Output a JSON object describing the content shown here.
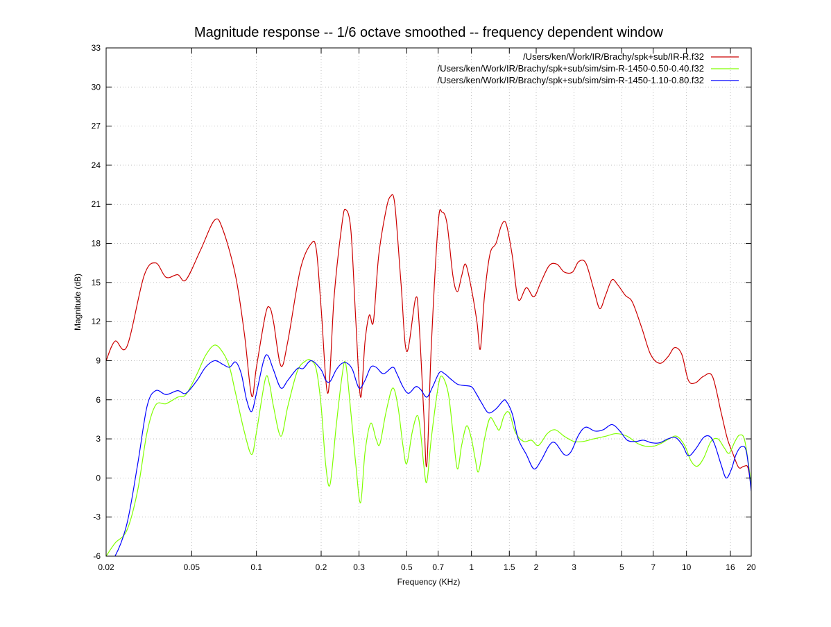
{
  "chart_data": {
    "type": "line",
    "title": "Magnitude response -- 1/6 octave smoothed -- frequency dependent window",
    "xlabel": "Frequency (KHz)",
    "ylabel": "Magnitude (dB)",
    "xscale": "log",
    "xlim": [
      0.02,
      20
    ],
    "ylim": [
      -6,
      33
    ],
    "grid": true,
    "legend_position": "top-right",
    "x_ticks": [
      0.02,
      0.05,
      0.1,
      0.2,
      0.3,
      0.5,
      0.7,
      1,
      1.5,
      2,
      3,
      5,
      7,
      10,
      16,
      20
    ],
    "x_tick_labels": [
      "0.02",
      "0.05",
      "0.1",
      "0.2",
      "0.3",
      "0.5",
      "0.7",
      "1",
      "1.5",
      "2",
      "3",
      "5",
      "7",
      "10",
      "16",
      "20"
    ],
    "y_ticks": [
      -6,
      -3,
      0,
      3,
      6,
      9,
      12,
      15,
      18,
      21,
      24,
      27,
      30,
      33
    ],
    "y_tick_labels": [
      "-6",
      "-3",
      "0",
      "3",
      "6",
      "9",
      "12",
      "15",
      "18",
      "21",
      "24",
      "27",
      "30",
      "33"
    ],
    "series": [
      {
        "name": "/Users/ken/Work/IR/Brachy/spk+sub/IR-R.f32",
        "color": "#cc0000",
        "points": [
          [
            0.02,
            9.0
          ],
          [
            0.022,
            10.5
          ],
          [
            0.025,
            10.1
          ],
          [
            0.03,
            15.5
          ],
          [
            0.034,
            16.5
          ],
          [
            0.038,
            15.4
          ],
          [
            0.043,
            15.6
          ],
          [
            0.047,
            15.2
          ],
          [
            0.055,
            17.5
          ],
          [
            0.064,
            19.8
          ],
          [
            0.07,
            19.0
          ],
          [
            0.08,
            15.5
          ],
          [
            0.088,
            11.0
          ],
          [
            0.095,
            6.3
          ],
          [
            0.1,
            8.5
          ],
          [
            0.11,
            12.5
          ],
          [
            0.115,
            13.1
          ],
          [
            0.12,
            12.0
          ],
          [
            0.13,
            8.6
          ],
          [
            0.14,
            10.5
          ],
          [
            0.16,
            16.0
          ],
          [
            0.18,
            18.0
          ],
          [
            0.19,
            17.5
          ],
          [
            0.2,
            13.0
          ],
          [
            0.215,
            6.5
          ],
          [
            0.23,
            14.0
          ],
          [
            0.25,
            19.5
          ],
          [
            0.26,
            20.6
          ],
          [
            0.275,
            19.0
          ],
          [
            0.29,
            12.0
          ],
          [
            0.305,
            6.2
          ],
          [
            0.32,
            10.5
          ],
          [
            0.335,
            12.5
          ],
          [
            0.35,
            12.0
          ],
          [
            0.37,
            17.0
          ],
          [
            0.4,
            20.5
          ],
          [
            0.42,
            21.6
          ],
          [
            0.44,
            21.0
          ],
          [
            0.47,
            15.0
          ],
          [
            0.5,
            9.7
          ],
          [
            0.55,
            13.8
          ],
          [
            0.57,
            12.0
          ],
          [
            0.6,
            5.0
          ],
          [
            0.62,
            1.0
          ],
          [
            0.65,
            10.0
          ],
          [
            0.7,
            19.5
          ],
          [
            0.73,
            20.4
          ],
          [
            0.77,
            19.5
          ],
          [
            0.82,
            15.5
          ],
          [
            0.86,
            14.3
          ],
          [
            0.9,
            15.5
          ],
          [
            0.94,
            16.4
          ],
          [
            1.0,
            14.5
          ],
          [
            1.06,
            12.0
          ],
          [
            1.1,
            9.9
          ],
          [
            1.15,
            14.0
          ],
          [
            1.22,
            17.2
          ],
          [
            1.3,
            18.0
          ],
          [
            1.38,
            19.4
          ],
          [
            1.45,
            19.5
          ],
          [
            1.55,
            17.0
          ],
          [
            1.65,
            13.7
          ],
          [
            1.8,
            14.6
          ],
          [
            1.95,
            13.9
          ],
          [
            2.1,
            15.0
          ],
          [
            2.3,
            16.3
          ],
          [
            2.5,
            16.4
          ],
          [
            2.7,
            15.8
          ],
          [
            2.95,
            15.8
          ],
          [
            3.15,
            16.6
          ],
          [
            3.4,
            16.5
          ],
          [
            3.7,
            14.5
          ],
          [
            3.95,
            13.0
          ],
          [
            4.2,
            14.0
          ],
          [
            4.5,
            15.2
          ],
          [
            4.8,
            14.8
          ],
          [
            5.2,
            14.0
          ],
          [
            5.6,
            13.5
          ],
          [
            6.2,
            11.5
          ],
          [
            6.8,
            9.5
          ],
          [
            7.5,
            8.8
          ],
          [
            8.2,
            9.3
          ],
          [
            8.8,
            10.0
          ],
          [
            9.5,
            9.5
          ],
          [
            10.2,
            7.5
          ],
          [
            11.0,
            7.3
          ],
          [
            12.0,
            7.8
          ],
          [
            13.2,
            7.8
          ],
          [
            14.5,
            5.0
          ],
          [
            15.5,
            3.0
          ],
          [
            16.5,
            1.8
          ],
          [
            17.5,
            0.8
          ],
          [
            18.5,
            0.9
          ],
          [
            19.3,
            0.8
          ],
          [
            20.0,
            -0.7
          ]
        ]
      },
      {
        "name": "/Users/ken/Work/IR/Brachy/spk+sub/sim/sim-R-1450-0.50-0.40.f32",
        "color": "#80ff00",
        "points": [
          [
            0.02,
            -6.0
          ],
          [
            0.022,
            -5.0
          ],
          [
            0.025,
            -4.0
          ],
          [
            0.028,
            -1.0
          ],
          [
            0.031,
            3.5
          ],
          [
            0.034,
            5.6
          ],
          [
            0.038,
            5.7
          ],
          [
            0.043,
            6.2
          ],
          [
            0.047,
            6.4
          ],
          [
            0.053,
            8.0
          ],
          [
            0.058,
            9.4
          ],
          [
            0.064,
            10.2
          ],
          [
            0.07,
            9.6
          ],
          [
            0.075,
            8.5
          ],
          [
            0.08,
            6.5
          ],
          [
            0.088,
            3.5
          ],
          [
            0.095,
            1.8
          ],
          [
            0.1,
            3.5
          ],
          [
            0.11,
            7.6
          ],
          [
            0.115,
            7.2
          ],
          [
            0.12,
            5.5
          ],
          [
            0.13,
            3.2
          ],
          [
            0.14,
            5.5
          ],
          [
            0.155,
            8.2
          ],
          [
            0.17,
            9.0
          ],
          [
            0.18,
            9.0
          ],
          [
            0.19,
            8.3
          ],
          [
            0.2,
            5.5
          ],
          [
            0.21,
            1.0
          ],
          [
            0.22,
            -0.5
          ],
          [
            0.235,
            4.0
          ],
          [
            0.25,
            7.8
          ],
          [
            0.26,
            8.8
          ],
          [
            0.275,
            5.0
          ],
          [
            0.29,
            1.0
          ],
          [
            0.305,
            -1.9
          ],
          [
            0.32,
            2.0
          ],
          [
            0.34,
            4.2
          ],
          [
            0.36,
            3.0
          ],
          [
            0.375,
            2.6
          ],
          [
            0.4,
            5.0
          ],
          [
            0.43,
            6.9
          ],
          [
            0.455,
            5.5
          ],
          [
            0.48,
            2.5
          ],
          [
            0.5,
            1.1
          ],
          [
            0.53,
            3.5
          ],
          [
            0.56,
            4.8
          ],
          [
            0.58,
            3.5
          ],
          [
            0.6,
            1.0
          ],
          [
            0.62,
            -0.3
          ],
          [
            0.65,
            3.0
          ],
          [
            0.7,
            7.0
          ],
          [
            0.73,
            7.8
          ],
          [
            0.78,
            6.5
          ],
          [
            0.82,
            3.5
          ],
          [
            0.86,
            0.7
          ],
          [
            0.9,
            2.5
          ],
          [
            0.95,
            4.0
          ],
          [
            1.0,
            3.0
          ],
          [
            1.04,
            1.5
          ],
          [
            1.08,
            0.5
          ],
          [
            1.15,
            3.0
          ],
          [
            1.22,
            4.6
          ],
          [
            1.3,
            4.0
          ],
          [
            1.35,
            3.7
          ],
          [
            1.42,
            4.8
          ],
          [
            1.5,
            5.0
          ],
          [
            1.6,
            3.5
          ],
          [
            1.75,
            2.8
          ],
          [
            1.9,
            2.9
          ],
          [
            2.05,
            2.5
          ],
          [
            2.25,
            3.4
          ],
          [
            2.45,
            3.7
          ],
          [
            2.7,
            3.2
          ],
          [
            3.0,
            2.8
          ],
          [
            3.3,
            2.8
          ],
          [
            3.7,
            3.0
          ],
          [
            4.2,
            3.2
          ],
          [
            4.7,
            3.4
          ],
          [
            5.3,
            3.2
          ],
          [
            6.0,
            2.6
          ],
          [
            6.8,
            2.4
          ],
          [
            7.5,
            2.6
          ],
          [
            8.3,
            3.0
          ],
          [
            9.0,
            3.2
          ],
          [
            9.8,
            2.5
          ],
          [
            10.5,
            1.3
          ],
          [
            11.2,
            0.9
          ],
          [
            12.0,
            1.5
          ],
          [
            13.0,
            2.8
          ],
          [
            14.0,
            3.0
          ],
          [
            15.0,
            2.3
          ],
          [
            15.8,
            1.9
          ],
          [
            16.8,
            2.8
          ],
          [
            17.7,
            3.3
          ],
          [
            18.7,
            2.8
          ],
          [
            20.0,
            -0.5
          ]
        ]
      },
      {
        "name": "/Users/ken/Work/IR/Brachy/spk+sub/sim/sim-R-1450-1.10-0.80.f32",
        "color": "#0000ff",
        "points": [
          [
            0.02,
            -6.5
          ],
          [
            0.022,
            -6.0
          ],
          [
            0.025,
            -3.5
          ],
          [
            0.028,
            1.0
          ],
          [
            0.031,
            5.5
          ],
          [
            0.034,
            6.7
          ],
          [
            0.038,
            6.4
          ],
          [
            0.043,
            6.7
          ],
          [
            0.047,
            6.5
          ],
          [
            0.053,
            7.5
          ],
          [
            0.058,
            8.5
          ],
          [
            0.064,
            9.0
          ],
          [
            0.07,
            8.7
          ],
          [
            0.075,
            8.5
          ],
          [
            0.08,
            8.9
          ],
          [
            0.085,
            8.0
          ],
          [
            0.09,
            6.0
          ],
          [
            0.095,
            5.1
          ],
          [
            0.1,
            6.5
          ],
          [
            0.108,
            9.0
          ],
          [
            0.113,
            9.4
          ],
          [
            0.12,
            8.3
          ],
          [
            0.13,
            6.9
          ],
          [
            0.14,
            7.5
          ],
          [
            0.155,
            8.4
          ],
          [
            0.165,
            8.4
          ],
          [
            0.18,
            9.0
          ],
          [
            0.2,
            8.3
          ],
          [
            0.21,
            7.5
          ],
          [
            0.22,
            7.4
          ],
          [
            0.235,
            8.3
          ],
          [
            0.25,
            8.8
          ],
          [
            0.265,
            8.8
          ],
          [
            0.28,
            8.3
          ],
          [
            0.3,
            6.9
          ],
          [
            0.32,
            7.5
          ],
          [
            0.34,
            8.5
          ],
          [
            0.36,
            8.5
          ],
          [
            0.39,
            8.0
          ],
          [
            0.43,
            8.5
          ],
          [
            0.45,
            8.0
          ],
          [
            0.48,
            7.0
          ],
          [
            0.51,
            6.5
          ],
          [
            0.55,
            7.0
          ],
          [
            0.58,
            6.8
          ],
          [
            0.62,
            6.2
          ],
          [
            0.66,
            7.0
          ],
          [
            0.71,
            8.1
          ],
          [
            0.75,
            8.0
          ],
          [
            0.8,
            7.6
          ],
          [
            0.86,
            7.2
          ],
          [
            0.92,
            7.1
          ],
          [
            1.0,
            7.0
          ],
          [
            1.05,
            6.5
          ],
          [
            1.12,
            5.7
          ],
          [
            1.2,
            5.0
          ],
          [
            1.3,
            5.3
          ],
          [
            1.4,
            5.9
          ],
          [
            1.45,
            5.9
          ],
          [
            1.55,
            4.9
          ],
          [
            1.65,
            3.0
          ],
          [
            1.8,
            1.8
          ],
          [
            1.95,
            0.7
          ],
          [
            2.1,
            1.3
          ],
          [
            2.3,
            2.5
          ],
          [
            2.45,
            2.7
          ],
          [
            2.7,
            1.8
          ],
          [
            2.9,
            2.0
          ],
          [
            3.15,
            3.3
          ],
          [
            3.4,
            3.9
          ],
          [
            3.75,
            3.6
          ],
          [
            4.1,
            3.7
          ],
          [
            4.5,
            4.1
          ],
          [
            4.9,
            3.6
          ],
          [
            5.3,
            2.9
          ],
          [
            5.8,
            2.8
          ],
          [
            6.3,
            2.9
          ],
          [
            6.9,
            2.7
          ],
          [
            7.5,
            2.7
          ],
          [
            8.2,
            3.0
          ],
          [
            8.9,
            3.1
          ],
          [
            9.6,
            2.5
          ],
          [
            10.2,
            1.7
          ],
          [
            11.0,
            2.2
          ],
          [
            12.0,
            3.1
          ],
          [
            12.8,
            3.2
          ],
          [
            13.5,
            2.6
          ],
          [
            14.5,
            1.0
          ],
          [
            15.3,
            0.0
          ],
          [
            16.2,
            0.7
          ],
          [
            17.0,
            1.8
          ],
          [
            18.0,
            2.4
          ],
          [
            19.0,
            2.0
          ],
          [
            20.0,
            -1.0
          ]
        ]
      }
    ]
  }
}
